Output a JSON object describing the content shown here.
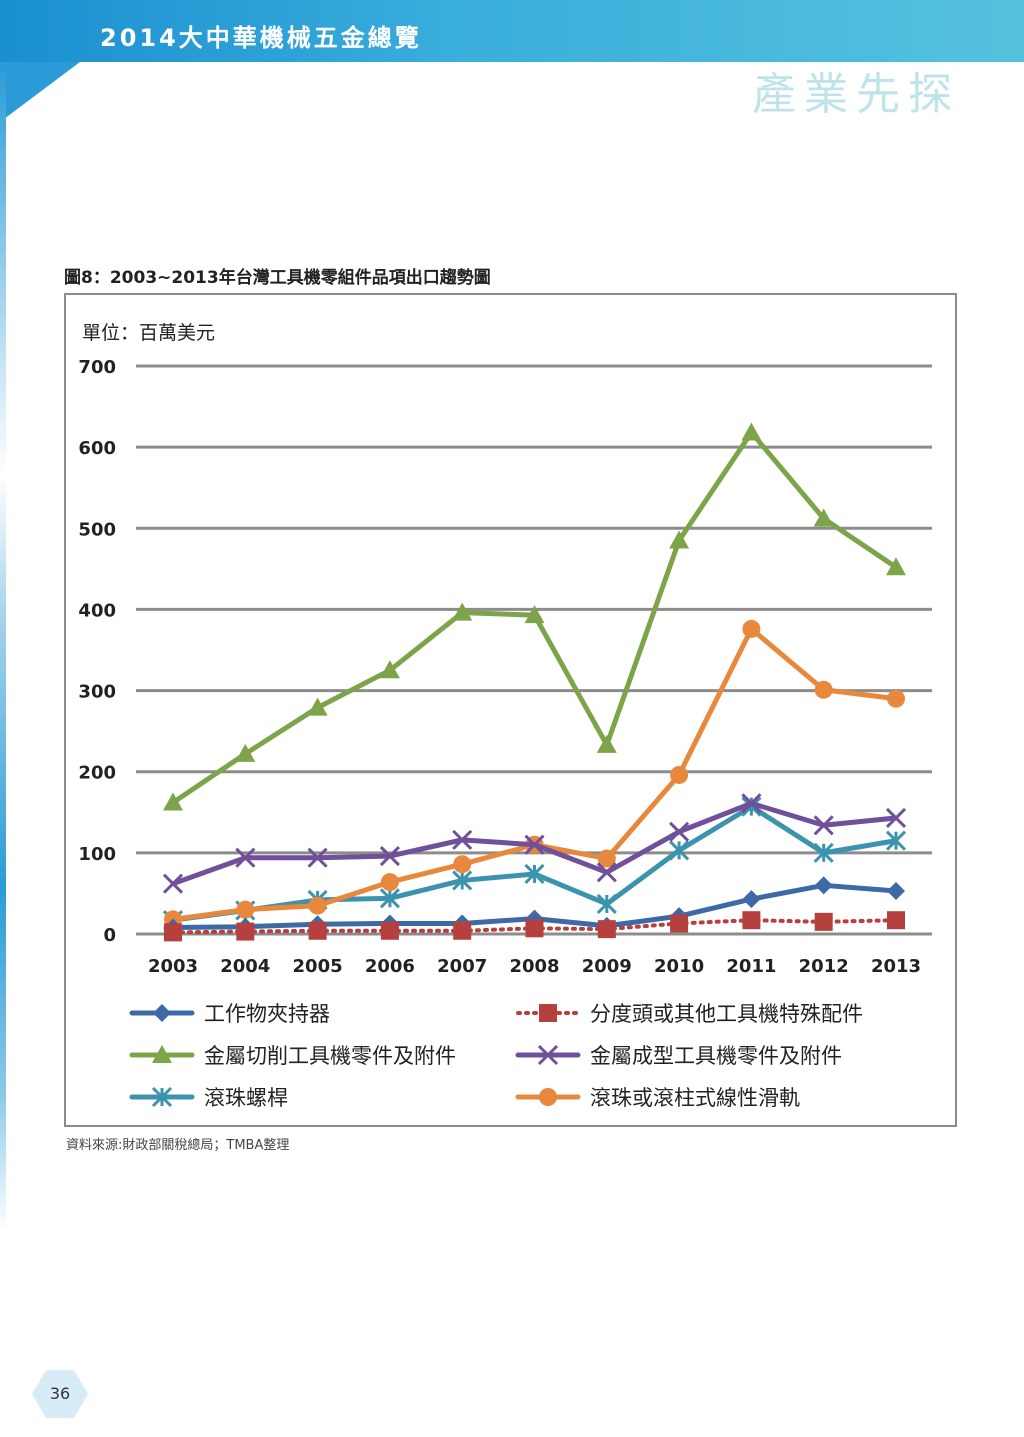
{
  "header": {
    "publication_title": "2014大中華機械五金總覽",
    "section_title": "產業先探"
  },
  "figure": {
    "caption": "圖8：2003~2013年台灣工具機零組件品項出口趨勢圖",
    "source": "資料來源:財政部關稅總局；TMBA整理"
  },
  "page": {
    "number": "36"
  },
  "chart_data": {
    "type": "line",
    "title": "",
    "unit_label": "單位：百萬美元",
    "xlabel": "",
    "ylabel": "",
    "ylim": [
      0,
      700
    ],
    "yticks": [
      "700",
      "600",
      "500",
      "400",
      "300",
      "200",
      "100",
      "0"
    ],
    "grid": true,
    "legend_position": "bottom",
    "categories": [
      "2003",
      "2004",
      "2005",
      "2006",
      "2007",
      "2008",
      "2009",
      "2010",
      "2011",
      "2012",
      "2013"
    ],
    "series": [
      {
        "name": "工作物夾持器",
        "color": "#3d6aa6",
        "marker": "diamond",
        "dash": "solid",
        "values": [
          8,
          9,
          12,
          13,
          13,
          19,
          10,
          22,
          43,
          60,
          53
        ]
      },
      {
        "name": "分度頭或其他工具機特殊配件",
        "color": "#b5403d",
        "marker": "square",
        "dash": "dotted",
        "values": [
          2,
          3,
          4,
          4,
          4,
          7,
          6,
          13,
          17,
          15,
          17
        ]
      },
      {
        "name": "金屬切削工具機零件及附件",
        "color": "#7ea44a",
        "marker": "triangle",
        "dash": "solid",
        "values": [
          162,
          222,
          279,
          325,
          396,
          393,
          233,
          485,
          618,
          512,
          452
        ]
      },
      {
        "name": "金屬成型工具機零件及附件",
        "color": "#70509a",
        "marker": "x",
        "dash": "solid",
        "values": [
          62,
          94,
          94,
          96,
          116,
          110,
          76,
          126,
          161,
          134,
          143
        ]
      },
      {
        "name": "滾珠螺桿",
        "color": "#3b93ad",
        "marker": "star",
        "dash": "solid",
        "values": [
          17,
          29,
          42,
          44,
          66,
          74,
          37,
          103,
          157,
          100,
          115
        ]
      },
      {
        "name": "滾珠或滾柱式線性滑軌",
        "color": "#e8883c",
        "marker": "circle",
        "dash": "solid",
        "values": [
          18,
          30,
          35,
          64,
          86,
          110,
          93,
          196,
          376,
          301,
          290
        ]
      }
    ]
  }
}
